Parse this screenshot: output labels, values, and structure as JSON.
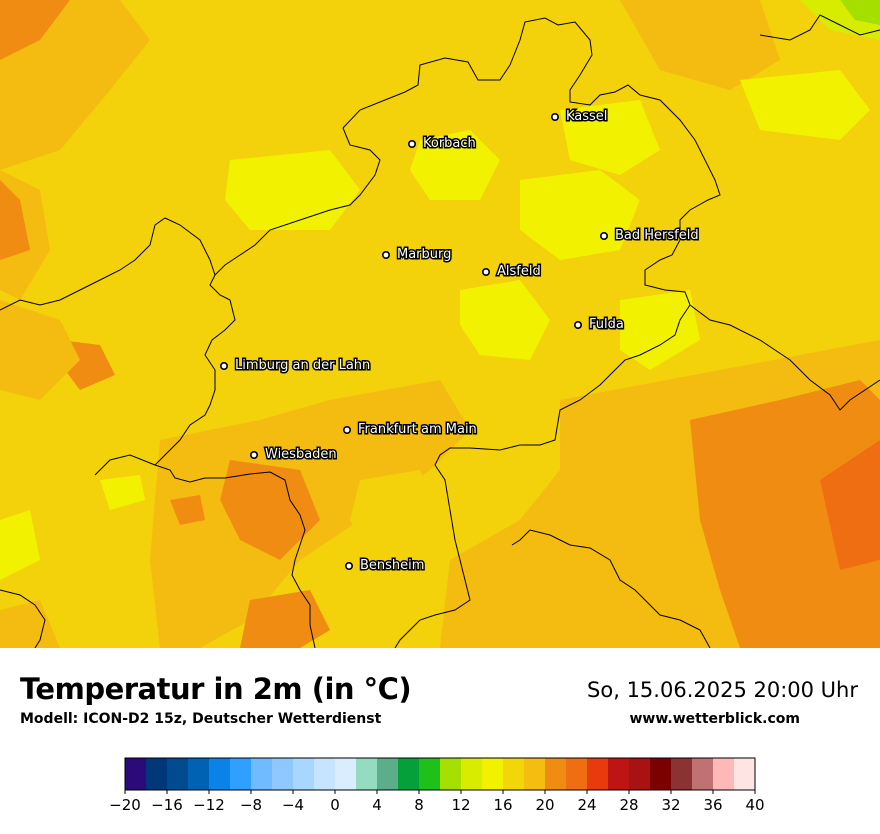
{
  "title": "Temperatur in 2m (in °C)",
  "subtitle": "Modell: ICON-D2 15z, Deutscher Wetterdienst",
  "datetime": "So, 15.06.2025 20:00 Uhr",
  "website": "www.wetterblick.com",
  "cities": [
    {
      "name": "Kassel"
    },
    {
      "name": "Korbach"
    },
    {
      "name": "Bad Hersfeld"
    },
    {
      "name": "Marburg"
    },
    {
      "name": "Alsfeld"
    },
    {
      "name": "Fulda"
    },
    {
      "name": "Limburg an der Lahn"
    },
    {
      "name": "Frankfurt am Main"
    },
    {
      "name": "Wiesbaden"
    },
    {
      "name": "Bensheim"
    }
  ],
  "legend": {
    "colors": [
      "#2d0a7a",
      "#00377a",
      "#004a8f",
      "#0062b3",
      "#0a82e8",
      "#2fa0ff",
      "#70bbff",
      "#8ec8ff",
      "#a9d6ff",
      "#c6e4ff",
      "#d9edff",
      "#93dcc2",
      "#5cae8a",
      "#05a03a",
      "#20c01a",
      "#a4df00",
      "#d8ec00",
      "#f2f200",
      "#f3d60a",
      "#f4bd10",
      "#f18c13",
      "#f06e12",
      "#e83a0c",
      "#bf1414",
      "#a81212",
      "#7b0000",
      "#8b3232",
      "#c07272",
      "#ffb8b8",
      "#ffe4e4"
    ],
    "tick_labels": [
      "−20",
      "−16",
      "−12",
      "−8",
      "−4",
      "0",
      "4",
      "8",
      "12",
      "16",
      "20",
      "24",
      "28",
      "32",
      "36",
      "40"
    ]
  }
}
